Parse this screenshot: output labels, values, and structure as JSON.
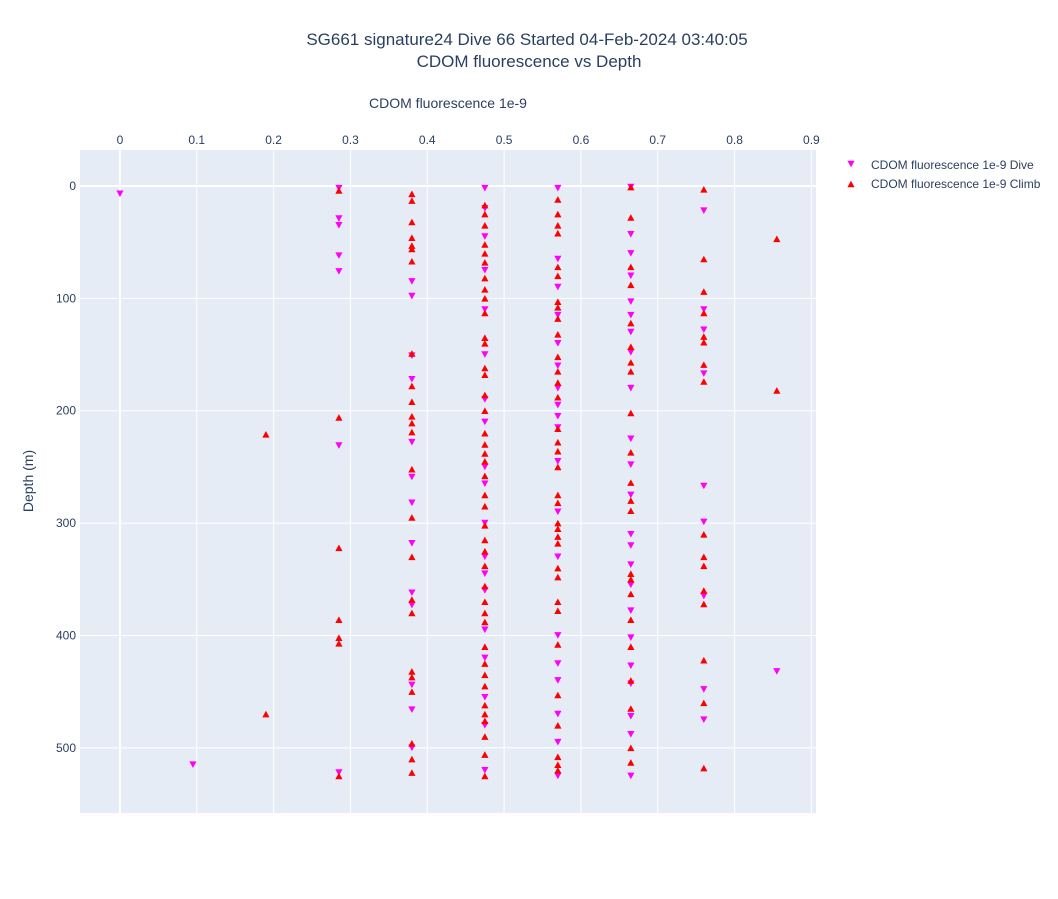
{
  "chart_data": {
    "type": "scatter",
    "title": "SG661 signature24 Dive 66 Started 04-Feb-2024 03:40:05",
    "subtitle": "CDOM fluorescence vs Depth",
    "xlabel": "CDOM fluorescence 1e-9",
    "ylabel": "Depth (m)",
    "xlim": [
      -0.052,
      0.906
    ],
    "ylim": [
      558,
      -32
    ],
    "x_axis_position": "top",
    "y_reversed": true,
    "x_ticks": [
      "0",
      "0.1",
      "0.2",
      "0.3",
      "0.4",
      "0.5",
      "0.6",
      "0.7",
      "0.8",
      "0.9"
    ],
    "x_tick_values": [
      0,
      0.1,
      0.2,
      0.3,
      0.4,
      0.5,
      0.6,
      0.7,
      0.8,
      0.9
    ],
    "y_ticks": [
      "0",
      "100",
      "200",
      "300",
      "400",
      "500"
    ],
    "y_tick_values": [
      0,
      100,
      200,
      300,
      400,
      500
    ],
    "grid": true,
    "legend_position": "top-right",
    "colors": {
      "plot_bg": "#e5ecf6",
      "grid": "#ffffff",
      "text": "#2a3f5f"
    },
    "series": [
      {
        "name": "CDOM fluorescence 1e-9 Dive",
        "marker": "triangle-down",
        "color": "#ff00ff",
        "points": [
          [
            0,
            7
          ],
          [
            0.095,
            515
          ],
          [
            0.285,
            2
          ],
          [
            0.285,
            29
          ],
          [
            0.285,
            35
          ],
          [
            0.285,
            62
          ],
          [
            0.285,
            76
          ],
          [
            0.285,
            231
          ],
          [
            0.285,
            522
          ],
          [
            0.38,
            85
          ],
          [
            0.38,
            98
          ],
          [
            0.38,
            151
          ],
          [
            0.38,
            172
          ],
          [
            0.38,
            228
          ],
          [
            0.38,
            259
          ],
          [
            0.38,
            282
          ],
          [
            0.38,
            318
          ],
          [
            0.38,
            362
          ],
          [
            0.38,
            373
          ],
          [
            0.38,
            444
          ],
          [
            0.38,
            466
          ],
          [
            0.38,
            500
          ],
          [
            0.475,
            2
          ],
          [
            0.475,
            20
          ],
          [
            0.475,
            45
          ],
          [
            0.475,
            75
          ],
          [
            0.475,
            110
          ],
          [
            0.475,
            150
          ],
          [
            0.475,
            190
          ],
          [
            0.475,
            210
          ],
          [
            0.475,
            250
          ],
          [
            0.475,
            265
          ],
          [
            0.475,
            300
          ],
          [
            0.475,
            330
          ],
          [
            0.475,
            345
          ],
          [
            0.475,
            360
          ],
          [
            0.475,
            395
          ],
          [
            0.475,
            420
          ],
          [
            0.475,
            455
          ],
          [
            0.475,
            480
          ],
          [
            0.475,
            520
          ],
          [
            0.57,
            2
          ],
          [
            0.57,
            65
          ],
          [
            0.57,
            90
          ],
          [
            0.57,
            115
          ],
          [
            0.57,
            140
          ],
          [
            0.57,
            160
          ],
          [
            0.57,
            180
          ],
          [
            0.57,
            195
          ],
          [
            0.57,
            205
          ],
          [
            0.57,
            215
          ],
          [
            0.57,
            245
          ],
          [
            0.57,
            290
          ],
          [
            0.57,
            330
          ],
          [
            0.57,
            400
          ],
          [
            0.57,
            425
          ],
          [
            0.57,
            440
          ],
          [
            0.57,
            470
          ],
          [
            0.57,
            495
          ],
          [
            0.57,
            525
          ],
          [
            0.665,
            1
          ],
          [
            0.665,
            43
          ],
          [
            0.665,
            60
          ],
          [
            0.665,
            80
          ],
          [
            0.665,
            103
          ],
          [
            0.665,
            115
          ],
          [
            0.665,
            130
          ],
          [
            0.665,
            148
          ],
          [
            0.665,
            180
          ],
          [
            0.665,
            225
          ],
          [
            0.665,
            248
          ],
          [
            0.665,
            275
          ],
          [
            0.665,
            310
          ],
          [
            0.665,
            320
          ],
          [
            0.665,
            337
          ],
          [
            0.665,
            355
          ],
          [
            0.665,
            378
          ],
          [
            0.665,
            402
          ],
          [
            0.665,
            427
          ],
          [
            0.665,
            443
          ],
          [
            0.665,
            472
          ],
          [
            0.665,
            488
          ],
          [
            0.665,
            525
          ],
          [
            0.76,
            22
          ],
          [
            0.76,
            110
          ],
          [
            0.76,
            128
          ],
          [
            0.76,
            167
          ],
          [
            0.76,
            267
          ],
          [
            0.76,
            299
          ],
          [
            0.76,
            365
          ],
          [
            0.76,
            448
          ],
          [
            0.76,
            475
          ],
          [
            0.855,
            432
          ]
        ]
      },
      {
        "name": "CDOM fluorescence 1e-9 Climb",
        "marker": "triangle-up",
        "color": "#ff0000",
        "points": [
          [
            0.19,
            221
          ],
          [
            0.19,
            470
          ],
          [
            0.285,
            4
          ],
          [
            0.285,
            206
          ],
          [
            0.285,
            322
          ],
          [
            0.285,
            386
          ],
          [
            0.285,
            402
          ],
          [
            0.285,
            407
          ],
          [
            0.285,
            525
          ],
          [
            0.38,
            7
          ],
          [
            0.38,
            13
          ],
          [
            0.38,
            32
          ],
          [
            0.38,
            46
          ],
          [
            0.38,
            53
          ],
          [
            0.38,
            56
          ],
          [
            0.38,
            67
          ],
          [
            0.38,
            149
          ],
          [
            0.38,
            178
          ],
          [
            0.38,
            192
          ],
          [
            0.38,
            205
          ],
          [
            0.38,
            211
          ],
          [
            0.38,
            219
          ],
          [
            0.38,
            252
          ],
          [
            0.38,
            295
          ],
          [
            0.38,
            330
          ],
          [
            0.38,
            368
          ],
          [
            0.38,
            380
          ],
          [
            0.38,
            432
          ],
          [
            0.38,
            437
          ],
          [
            0.38,
            450
          ],
          [
            0.38,
            496
          ],
          [
            0.38,
            510
          ],
          [
            0.38,
            522
          ],
          [
            0.475,
            17
          ],
          [
            0.475,
            25
          ],
          [
            0.475,
            35
          ],
          [
            0.475,
            52
          ],
          [
            0.475,
            60
          ],
          [
            0.475,
            68
          ],
          [
            0.475,
            82
          ],
          [
            0.475,
            92
          ],
          [
            0.475,
            100
          ],
          [
            0.475,
            113
          ],
          [
            0.475,
            135
          ],
          [
            0.475,
            140
          ],
          [
            0.475,
            162
          ],
          [
            0.475,
            168
          ],
          [
            0.475,
            186
          ],
          [
            0.475,
            200
          ],
          [
            0.475,
            220
          ],
          [
            0.475,
            230
          ],
          [
            0.475,
            238
          ],
          [
            0.475,
            245
          ],
          [
            0.475,
            258
          ],
          [
            0.475,
            275
          ],
          [
            0.475,
            285
          ],
          [
            0.475,
            302
          ],
          [
            0.475,
            315
          ],
          [
            0.475,
            325
          ],
          [
            0.475,
            338
          ],
          [
            0.475,
            356
          ],
          [
            0.475,
            370
          ],
          [
            0.475,
            380
          ],
          [
            0.475,
            388
          ],
          [
            0.475,
            410
          ],
          [
            0.475,
            425
          ],
          [
            0.475,
            435
          ],
          [
            0.475,
            445
          ],
          [
            0.475,
            462
          ],
          [
            0.475,
            470
          ],
          [
            0.475,
            476
          ],
          [
            0.475,
            490
          ],
          [
            0.475,
            506
          ],
          [
            0.475,
            525
          ],
          [
            0.57,
            12
          ],
          [
            0.57,
            25
          ],
          [
            0.57,
            35
          ],
          [
            0.57,
            42
          ],
          [
            0.57,
            72
          ],
          [
            0.57,
            80
          ],
          [
            0.57,
            103
          ],
          [
            0.57,
            108
          ],
          [
            0.57,
            118
          ],
          [
            0.57,
            132
          ],
          [
            0.57,
            152
          ],
          [
            0.57,
            165
          ],
          [
            0.57,
            175
          ],
          [
            0.57,
            188
          ],
          [
            0.57,
            216
          ],
          [
            0.57,
            228
          ],
          [
            0.57,
            236
          ],
          [
            0.57,
            250
          ],
          [
            0.57,
            275
          ],
          [
            0.57,
            282
          ],
          [
            0.57,
            300
          ],
          [
            0.57,
            305
          ],
          [
            0.57,
            312
          ],
          [
            0.57,
            318
          ],
          [
            0.57,
            340
          ],
          [
            0.57,
            348
          ],
          [
            0.57,
            370
          ],
          [
            0.57,
            378
          ],
          [
            0.57,
            408
          ],
          [
            0.57,
            453
          ],
          [
            0.57,
            480
          ],
          [
            0.57,
            508
          ],
          [
            0.57,
            515
          ],
          [
            0.57,
            520
          ],
          [
            0.665,
            1
          ],
          [
            0.665,
            28
          ],
          [
            0.665,
            72
          ],
          [
            0.665,
            88
          ],
          [
            0.665,
            122
          ],
          [
            0.665,
            143
          ],
          [
            0.665,
            157
          ],
          [
            0.665,
            165
          ],
          [
            0.665,
            202
          ],
          [
            0.665,
            237
          ],
          [
            0.665,
            264
          ],
          [
            0.665,
            280
          ],
          [
            0.665,
            289
          ],
          [
            0.665,
            345
          ],
          [
            0.665,
            350
          ],
          [
            0.665,
            363
          ],
          [
            0.665,
            386
          ],
          [
            0.665,
            410
          ],
          [
            0.665,
            440
          ],
          [
            0.665,
            465
          ],
          [
            0.665,
            500
          ],
          [
            0.665,
            513
          ],
          [
            0.76,
            3
          ],
          [
            0.76,
            65
          ],
          [
            0.76,
            94
          ],
          [
            0.76,
            113
          ],
          [
            0.76,
            134
          ],
          [
            0.76,
            139
          ],
          [
            0.76,
            159
          ],
          [
            0.76,
            174
          ],
          [
            0.76,
            310
          ],
          [
            0.76,
            330
          ],
          [
            0.76,
            338
          ],
          [
            0.76,
            360
          ],
          [
            0.76,
            372
          ],
          [
            0.76,
            422
          ],
          [
            0.76,
            460
          ],
          [
            0.76,
            518
          ],
          [
            0.855,
            47
          ],
          [
            0.855,
            182
          ]
        ]
      }
    ]
  }
}
